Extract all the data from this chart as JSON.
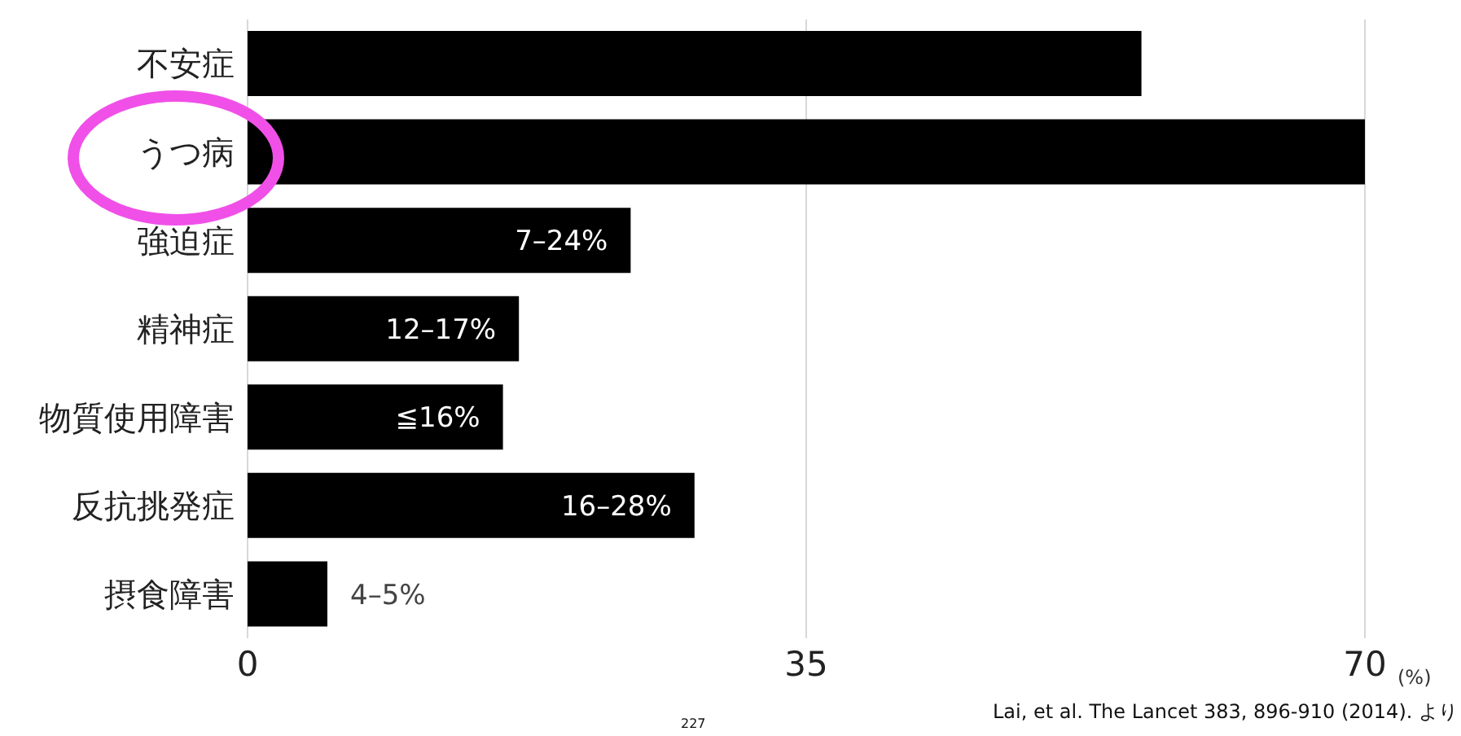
{
  "chart_data": {
    "type": "bar",
    "orientation": "horizontal",
    "categories": [
      "不安症",
      "うつ病",
      "強迫症",
      "精神症",
      "物質使用障害",
      "反抗挑発症",
      "摂食障害"
    ],
    "values": [
      56,
      70,
      24,
      17,
      16,
      28,
      5
    ],
    "color": "#000000",
    "xlabel": "(%)",
    "xlim": [
      0,
      70
    ],
    "xticks": [
      0,
      35,
      70
    ],
    "grid": "x",
    "legend": false,
    "annotations": [
      {
        "text": "7–24%",
        "x": 24,
        "y": "強迫症"
      },
      {
        "text": "12–17%",
        "x": 17,
        "y": "精神症"
      },
      {
        "text": "≦16%",
        "x": 16,
        "y": "物質使用障害"
      },
      {
        "text": "16–28%",
        "x": 28,
        "y": "反抗挑発症"
      },
      {
        "text": "4–5%",
        "x": 5,
        "y": "摂食障害"
      },
      "Lai, et al. The Lancet 383, 896-910 (2014). より",
      "227"
    ]
  }
}
